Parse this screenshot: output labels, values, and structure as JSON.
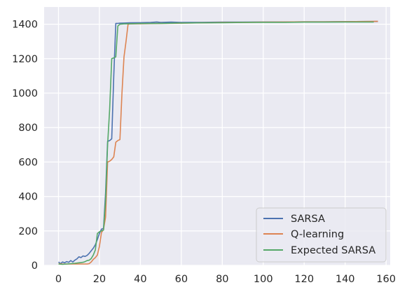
{
  "chart_data": {
    "type": "line",
    "title": "",
    "xlabel": "",
    "ylabel": "",
    "xlim": [
      -7,
      162
    ],
    "ylim": [
      0,
      1500
    ],
    "x_ticks": [
      0,
      20,
      40,
      60,
      80,
      100,
      120,
      140,
      160
    ],
    "y_ticks": [
      0,
      200,
      400,
      600,
      800,
      1000,
      1200,
      1400
    ],
    "grid": true,
    "legend_position": "lower right",
    "colors": {
      "background": "#eaeaf2",
      "grid": "#ffffff"
    },
    "series": [
      {
        "name": "SARSA",
        "color": "#4c72b0",
        "points": [
          [
            0,
            20
          ],
          [
            1,
            10
          ],
          [
            2,
            20
          ],
          [
            3,
            15
          ],
          [
            4,
            22
          ],
          [
            5,
            18
          ],
          [
            6,
            28
          ],
          [
            7,
            20
          ],
          [
            8,
            30
          ],
          [
            9,
            38
          ],
          [
            10,
            50
          ],
          [
            11,
            45
          ],
          [
            12,
            55
          ],
          [
            13,
            52
          ],
          [
            14,
            58
          ],
          [
            15,
            70
          ],
          [
            16,
            85
          ],
          [
            17,
            100
          ],
          [
            18,
            120
          ],
          [
            19,
            150
          ],
          [
            20,
            185
          ],
          [
            21,
            210
          ],
          [
            22,
            215
          ],
          [
            23,
            420
          ],
          [
            24,
            720
          ],
          [
            25,
            725
          ],
          [
            26,
            735
          ],
          [
            27,
            1100
          ],
          [
            28,
            1405
          ],
          [
            29,
            1405
          ],
          [
            30,
            1406
          ],
          [
            32,
            1407
          ],
          [
            35,
            1408
          ],
          [
            40,
            1409
          ],
          [
            45,
            1410
          ],
          [
            48,
            1413
          ],
          [
            50,
            1410
          ],
          [
            55,
            1412
          ],
          [
            60,
            1410
          ],
          [
            70,
            1411
          ],
          [
            80,
            1412
          ],
          [
            90,
            1412
          ],
          [
            100,
            1413
          ],
          [
            110,
            1413
          ],
          [
            120,
            1414
          ],
          [
            130,
            1414
          ],
          [
            140,
            1415
          ],
          [
            150,
            1416
          ],
          [
            156,
            1416
          ]
        ]
      },
      {
        "name": "Q-learning",
        "color": "#dd8452",
        "points": [
          [
            0,
            10
          ],
          [
            2,
            8
          ],
          [
            5,
            8
          ],
          [
            8,
            8
          ],
          [
            10,
            8
          ],
          [
            12,
            8
          ],
          [
            14,
            8
          ],
          [
            15,
            10
          ],
          [
            16,
            20
          ],
          [
            17,
            35
          ],
          [
            18,
            45
          ],
          [
            19,
            60
          ],
          [
            20,
            110
          ],
          [
            21,
            190
          ],
          [
            22,
            210
          ],
          [
            23,
            280
          ],
          [
            24,
            600
          ],
          [
            25,
            605
          ],
          [
            26,
            615
          ],
          [
            27,
            630
          ],
          [
            28,
            715
          ],
          [
            29,
            725
          ],
          [
            30,
            730
          ],
          [
            31,
            1000
          ],
          [
            32,
            1210
          ],
          [
            33,
            1300
          ],
          [
            34,
            1400
          ],
          [
            35,
            1402
          ],
          [
            40,
            1403
          ],
          [
            50,
            1405
          ],
          [
            60,
            1406
          ],
          [
            70,
            1408
          ],
          [
            80,
            1410
          ],
          [
            90,
            1411
          ],
          [
            100,
            1412
          ],
          [
            110,
            1413
          ],
          [
            120,
            1414
          ],
          [
            130,
            1414
          ],
          [
            140,
            1415
          ],
          [
            150,
            1416
          ],
          [
            156,
            1417
          ]
        ]
      },
      {
        "name": "Expected SARSA",
        "color": "#55a868",
        "points": [
          [
            0,
            8
          ],
          [
            2,
            6
          ],
          [
            4,
            8
          ],
          [
            6,
            10
          ],
          [
            8,
            12
          ],
          [
            10,
            15
          ],
          [
            12,
            18
          ],
          [
            13,
            22
          ],
          [
            14,
            28
          ],
          [
            15,
            30
          ],
          [
            16,
            40
          ],
          [
            17,
            60
          ],
          [
            18,
            90
          ],
          [
            19,
            185
          ],
          [
            20,
            195
          ],
          [
            21,
            200
          ],
          [
            22,
            205
          ],
          [
            23,
            380
          ],
          [
            24,
            700
          ],
          [
            25,
            905
          ],
          [
            26,
            1200
          ],
          [
            27,
            1205
          ],
          [
            28,
            1210
          ],
          [
            29,
            1390
          ],
          [
            30,
            1400
          ],
          [
            32,
            1402
          ],
          [
            35,
            1403
          ],
          [
            40,
            1404
          ],
          [
            50,
            1405
          ],
          [
            60,
            1407
          ],
          [
            70,
            1408
          ],
          [
            80,
            1409
          ],
          [
            90,
            1410
          ],
          [
            100,
            1411
          ],
          [
            110,
            1411
          ],
          [
            120,
            1412
          ],
          [
            130,
            1412
          ],
          [
            140,
            1413
          ],
          [
            150,
            1413
          ],
          [
            154,
            1413
          ]
        ]
      }
    ]
  }
}
